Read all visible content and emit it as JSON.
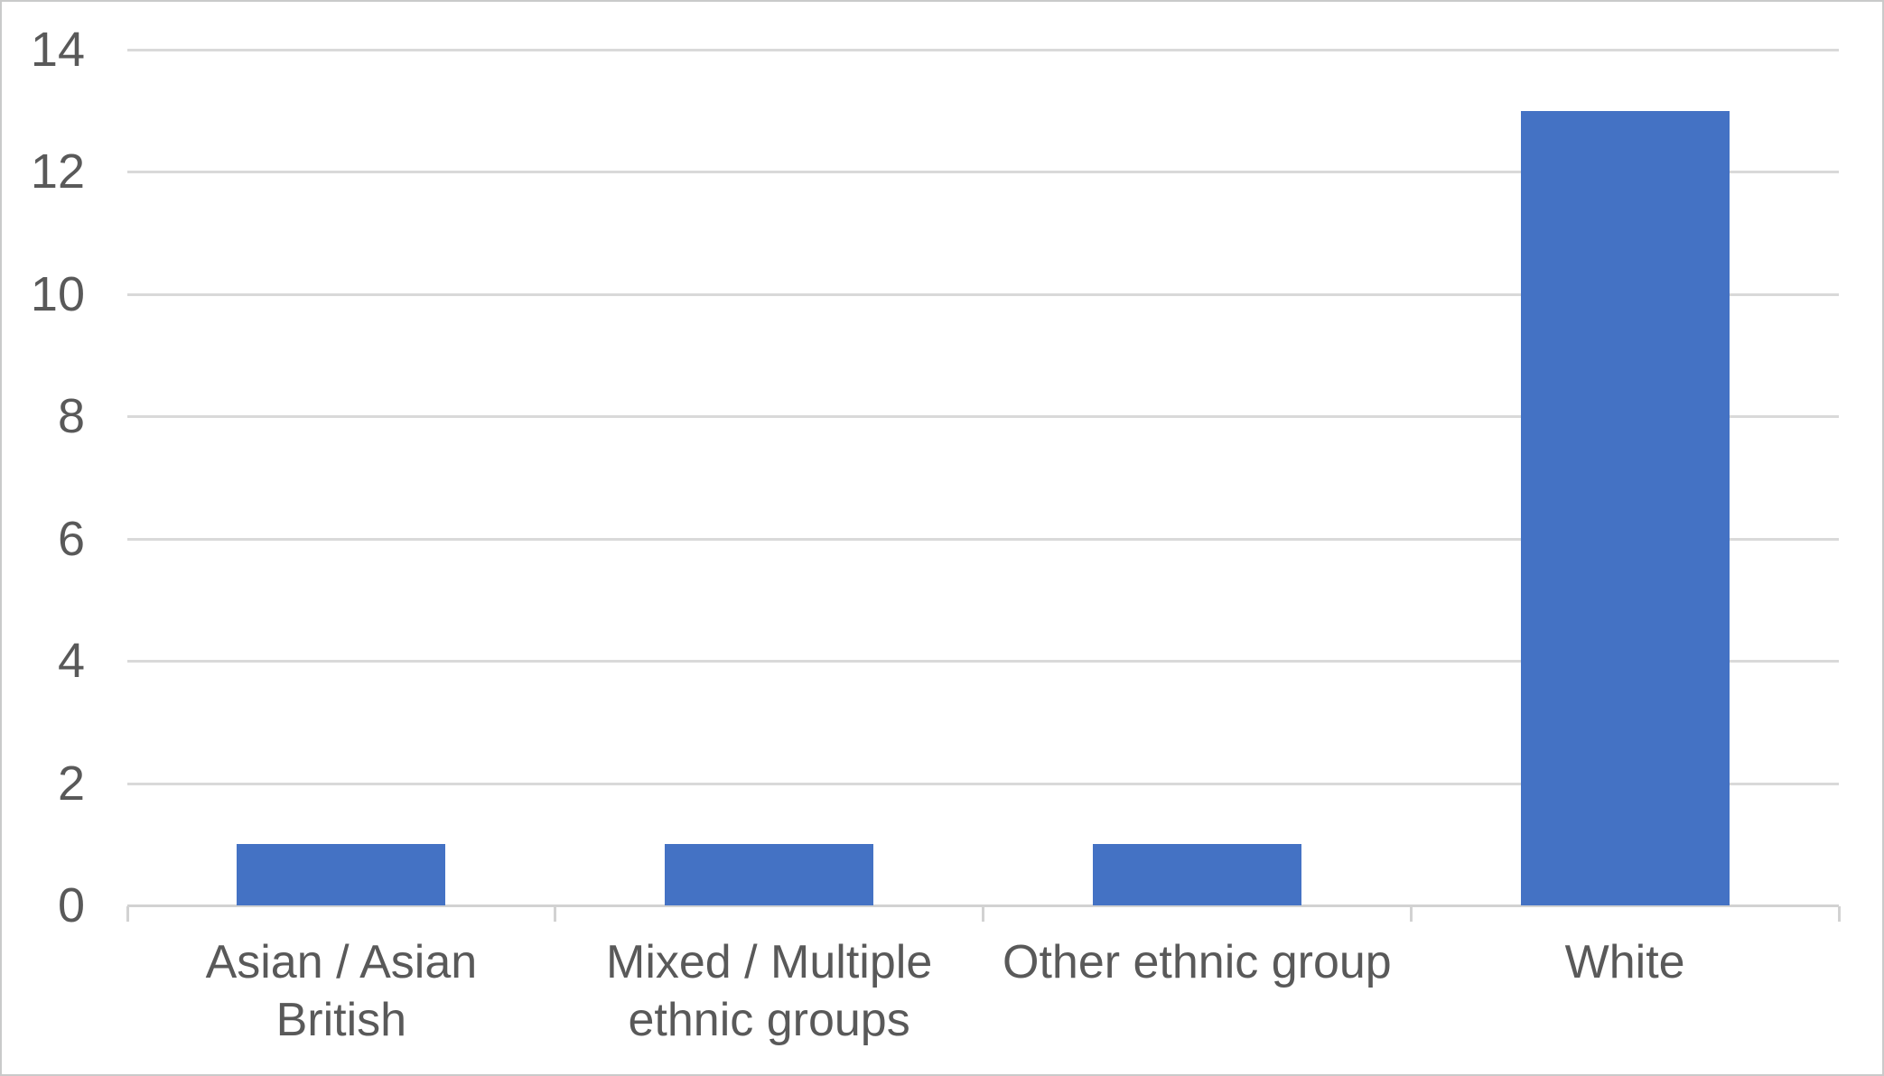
{
  "chart_data": {
    "type": "bar",
    "categories": [
      "Asian / Asian British",
      "Mixed / Multiple ethnic groups",
      "Other ethnic group",
      "White"
    ],
    "category_display": [
      "Asian / Asian\nBritish",
      "Mixed / Multiple\nethnic groups",
      "Other ethnic group",
      "White"
    ],
    "values": [
      1,
      1,
      1,
      13
    ],
    "yticks": [
      0,
      2,
      4,
      6,
      8,
      10,
      12,
      14
    ],
    "ylim": [
      0,
      14
    ],
    "grid": true,
    "legend": false,
    "title": "",
    "xlabel": "",
    "ylabel": "",
    "colors": {
      "bar": "#4472C4",
      "gridline": "#D9D9D9",
      "axis": "#D2D2D2",
      "text": "#595959",
      "background": "#FFFFFF",
      "frame_border": "#C9CACA"
    }
  }
}
